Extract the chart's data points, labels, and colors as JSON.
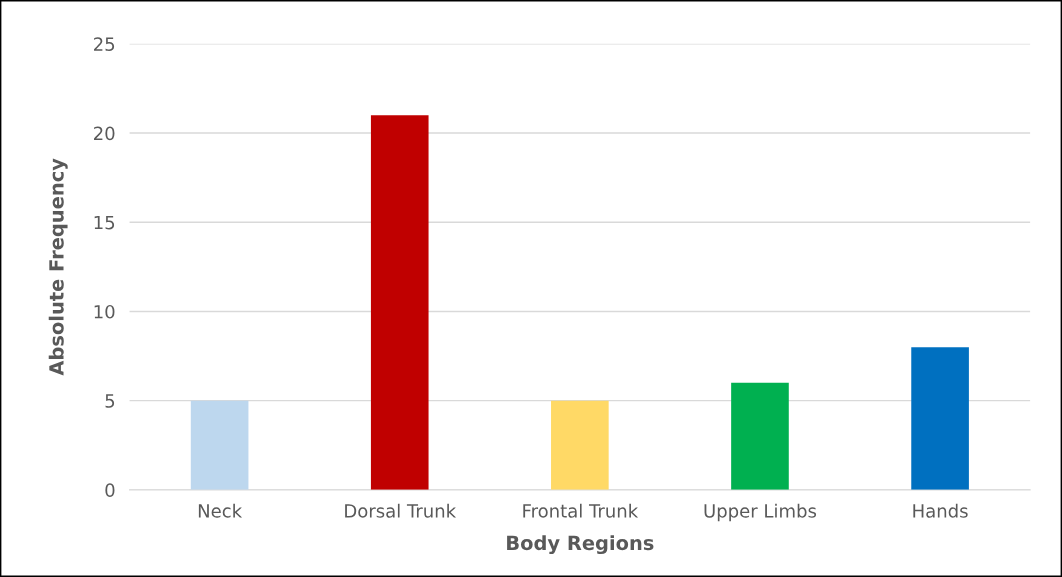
{
  "chart_data": {
    "type": "bar",
    "xlabel": "Body Regions",
    "ylabel": "Absolute Frequency",
    "categories": [
      "Neck",
      "Dorsal Trunk",
      "Frontal Trunk",
      "Upper Limbs",
      "Hands"
    ],
    "values": [
      5,
      21,
      5,
      6,
      8
    ],
    "colors": [
      "#bdd7ee",
      "#c00000",
      "#ffd966",
      "#00b050",
      "#0070c0"
    ],
    "ylim": [
      0,
      25
    ],
    "yticks": [
      0,
      5,
      10,
      15,
      20,
      25
    ],
    "grid": "y"
  }
}
